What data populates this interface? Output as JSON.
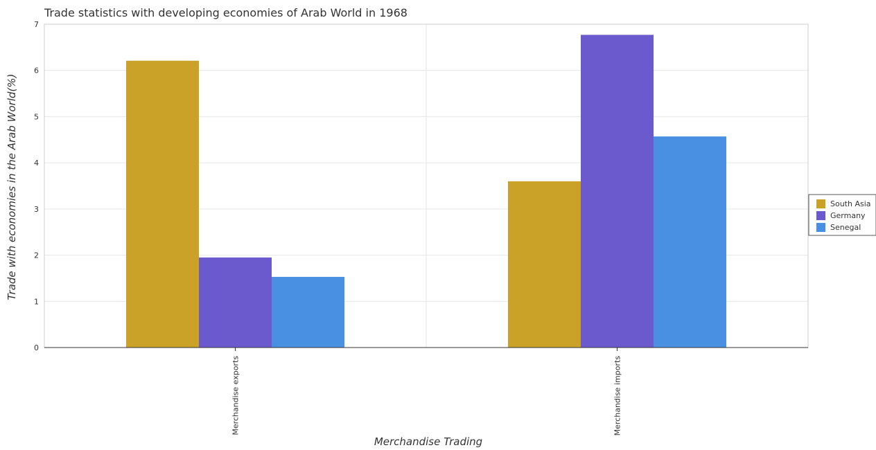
{
  "chart_data": {
    "type": "bar",
    "title": "Trade statistics with developing economies of Arab World in 1968",
    "xlabel": "Merchandise Trading",
    "ylabel": "Trade with economies in the Arab World(%)",
    "categories": [
      "Merchandise exports",
      "Merchandise imports"
    ],
    "series": [
      {
        "name": "South Asia",
        "color": "#c9a227",
        "values": [
          6.21,
          3.6
        ]
      },
      {
        "name": "Germany",
        "color": "#6a5acd",
        "values": [
          1.95,
          6.77
        ]
      },
      {
        "name": "Senegal",
        "color": "#4a90e2",
        "values": [
          1.53,
          4.57
        ]
      }
    ],
    "ylim": [
      0,
      7
    ],
    "yticks": [
      "0",
      "1",
      "2",
      "3",
      "4",
      "5",
      "6",
      "7"
    ],
    "grid": true,
    "legend_position": "right"
  }
}
